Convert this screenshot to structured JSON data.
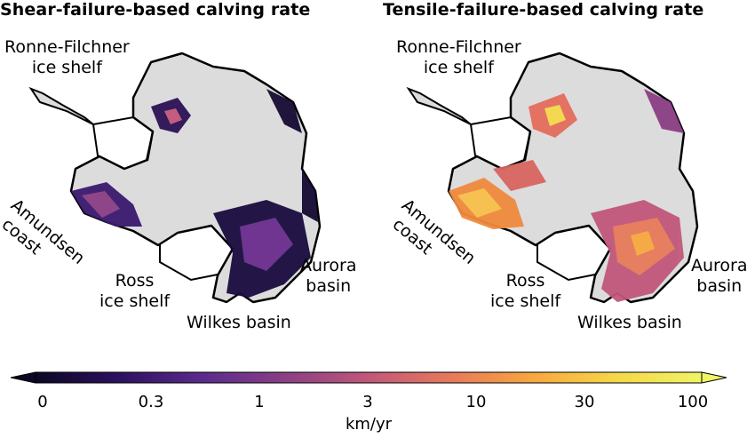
{
  "panels": [
    {
      "title": "Shear-failure-based calving rate",
      "labels": {
        "ronne_line1": "Ronne-Filchner",
        "ronne_line2": "ice shelf",
        "amundsen_line1": "Amundsen",
        "amundsen_line2": "coast",
        "ross_line1": "Ross",
        "ross_line2": "ice shelf",
        "wilkes": "Wilkes basin",
        "aurora_line1": "Aurora",
        "aurora_line2": "basin"
      }
    },
    {
      "title": "Tensile-failure-based calving rate",
      "labels": {
        "ronne_line1": "Ronne-Filchner",
        "ronne_line2": "ice shelf",
        "amundsen_line1": "Amundsen",
        "amundsen_line2": "coast",
        "ross_line1": "Ross",
        "ross_line2": "ice shelf",
        "wilkes": "Wilkes basin",
        "aurora_line1": "Aurora",
        "aurora_line2": "basin"
      }
    }
  ],
  "colorbar": {
    "ticks": [
      "0",
      "0.3",
      "1",
      "3",
      "10",
      "30",
      "100"
    ],
    "unit": "km/yr",
    "scale": "log",
    "extend": "both",
    "colormap": "inferno",
    "colors": [
      "#0b0724",
      "#2c1160",
      "#5a2a8c",
      "#8b3f85",
      "#c1577b",
      "#e77a5a",
      "#f8a83e",
      "#f5d84a",
      "#f0f465"
    ]
  },
  "map_colors": {
    "land": "#dcdcdc",
    "ice_shelf": "#ffffff",
    "coastline": "#000000"
  }
}
